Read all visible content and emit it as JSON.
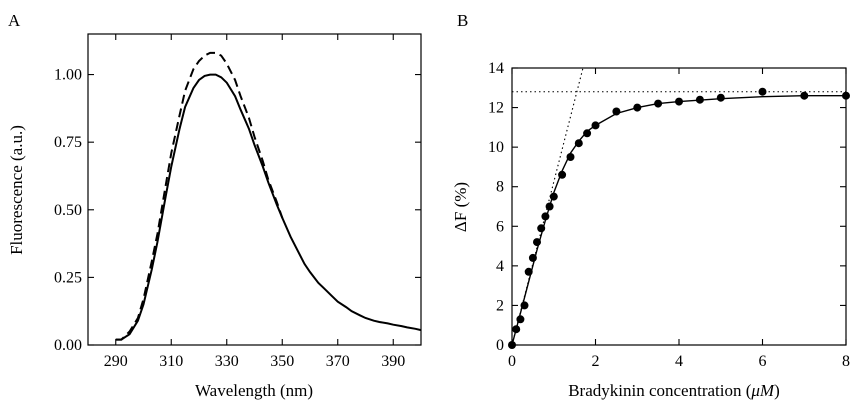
{
  "chart_data": [
    {
      "panel": "A",
      "type": "line",
      "xlabel": "Wavelength (nm)",
      "ylabel": "Fluorescence (a.u.)",
      "xlim": [
        280,
        400
      ],
      "ylim": [
        0,
        1.15
      ],
      "xticks": [
        290,
        310,
        330,
        350,
        370,
        390
      ],
      "yticks": [
        0.0,
        0.25,
        0.5,
        0.75,
        1.0
      ],
      "xtick_labels": [
        "290",
        "310",
        "330",
        "350",
        "370",
        "390"
      ],
      "ytick_labels": [
        "0.00",
        "0.25",
        "0.50",
        "0.75",
        "1.00"
      ],
      "series": [
        {
          "style": "solid",
          "x": [
            290,
            292,
            295,
            298,
            300,
            303,
            305,
            308,
            310,
            313,
            315,
            318,
            320,
            322,
            324,
            326,
            328,
            330,
            333,
            335,
            338,
            340,
            343,
            345,
            348,
            350,
            353,
            355,
            358,
            360,
            363,
            365,
            368,
            370,
            373,
            375,
            378,
            380,
            383,
            385,
            388,
            390,
            393,
            395,
            398,
            400
          ],
          "y": [
            0.02,
            0.02,
            0.04,
            0.09,
            0.15,
            0.28,
            0.38,
            0.55,
            0.66,
            0.8,
            0.88,
            0.95,
            0.98,
            0.995,
            1.0,
            1.0,
            0.99,
            0.97,
            0.92,
            0.87,
            0.8,
            0.74,
            0.66,
            0.6,
            0.52,
            0.47,
            0.4,
            0.36,
            0.3,
            0.27,
            0.23,
            0.21,
            0.18,
            0.16,
            0.14,
            0.125,
            0.11,
            0.1,
            0.09,
            0.085,
            0.08,
            0.075,
            0.07,
            0.065,
            0.06,
            0.055
          ]
        },
        {
          "style": "dashed",
          "x": [
            290,
            292,
            295,
            298,
            300,
            303,
            305,
            308,
            310,
            313,
            315,
            318,
            320,
            322,
            324,
            326,
            328,
            330,
            333,
            335,
            338,
            340,
            343,
            345,
            348,
            350
          ],
          "y": [
            0.02,
            0.02,
            0.05,
            0.1,
            0.17,
            0.31,
            0.41,
            0.59,
            0.71,
            0.85,
            0.94,
            1.02,
            1.05,
            1.07,
            1.08,
            1.08,
            1.07,
            1.04,
            0.98,
            0.92,
            0.84,
            0.77,
            0.68,
            0.61,
            0.53,
            0.47
          ]
        }
      ]
    },
    {
      "panel": "B",
      "type": "scatter",
      "xlabel": "Bradykinin concentration (",
      "xlabel_unit": "μM",
      "xlabel_end": ")",
      "ylabel": "ΔF (%)",
      "xlim": [
        0,
        8
      ],
      "ylim": [
        0,
        14
      ],
      "xticks": [
        0,
        2,
        4,
        6,
        8
      ],
      "yticks": [
        0,
        2,
        4,
        6,
        8,
        10,
        12,
        14
      ],
      "xtick_labels": [
        "0",
        "2",
        "4",
        "6",
        "8"
      ],
      "ytick_labels": [
        "0",
        "2",
        "4",
        "6",
        "8",
        "10",
        "12",
        "14"
      ],
      "points": {
        "x": [
          0.0,
          0.1,
          0.2,
          0.3,
          0.4,
          0.5,
          0.6,
          0.7,
          0.8,
          0.9,
          1.0,
          1.2,
          1.4,
          1.6,
          1.8,
          2.0,
          2.5,
          3.0,
          3.5,
          4.0,
          4.5,
          5.0,
          6.0,
          7.0,
          8.0
        ],
        "y": [
          0.0,
          0.8,
          1.3,
          2.0,
          3.7,
          4.4,
          5.2,
          5.9,
          6.5,
          7.0,
          7.5,
          8.6,
          9.5,
          10.2,
          10.7,
          11.1,
          11.8,
          12.0,
          12.2,
          12.3,
          12.4,
          12.5,
          12.8,
          12.6,
          12.6
        ]
      },
      "fit_curve": {
        "x": [
          0.0,
          0.2,
          0.4,
          0.6,
          0.8,
          1.0,
          1.2,
          1.4,
          1.6,
          1.8,
          2.0,
          2.5,
          3.0,
          3.5,
          4.0,
          5.0,
          6.0,
          7.0,
          8.0
        ],
        "y": [
          0.0,
          1.6,
          3.2,
          4.8,
          6.3,
          7.7,
          8.8,
          9.7,
          10.3,
          10.8,
          11.1,
          11.7,
          12.0,
          12.2,
          12.3,
          12.45,
          12.55,
          12.6,
          12.6
        ]
      },
      "plateau": 12.8,
      "initial_slope_line": {
        "x": [
          0,
          1.7
        ],
        "y": [
          0,
          14
        ]
      }
    }
  ]
}
